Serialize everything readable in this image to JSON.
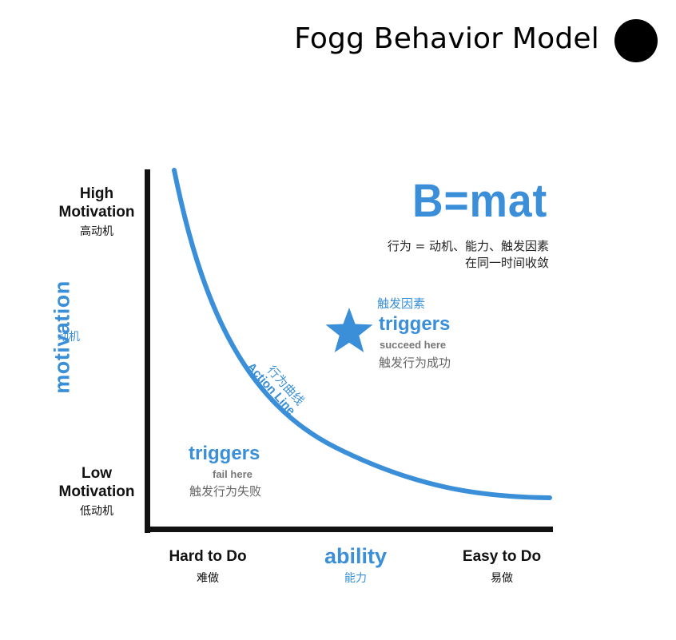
{
  "title": "Fogg Behavior Model",
  "y_axis": {
    "high_en_line1": "High",
    "high_en_line2": "Motivation",
    "high_cn": "高动机",
    "label_cn": "动机",
    "label_en": "motivation",
    "low_en_line1": "Low",
    "low_en_line2": "Motivation",
    "low_cn": "低动机"
  },
  "x_axis": {
    "hard_en": "Hard to Do",
    "hard_cn": "难做",
    "label_en": "ability",
    "label_cn": "能力",
    "easy_en": "Easy to Do",
    "easy_cn": "易做"
  },
  "formula": {
    "text": "B=mat",
    "desc_line1": "行为 = 动机、能力、触发因素",
    "desc_line2": "在同一时间收敛"
  },
  "success_zone": {
    "cn_title": "触发因素",
    "title": "triggers",
    "sub": "succeed here",
    "cn_sub": "触发行为成功"
  },
  "fail_zone": {
    "title": "triggers",
    "sub": "fail here",
    "cn_sub": "触发行为失败"
  },
  "action_line": {
    "cn": "行为曲线",
    "en": "Action Line"
  },
  "colors": {
    "accent": "#3a8fd8",
    "axis": "#111111",
    "text": "#111111",
    "muted": "#777777"
  },
  "icons": {
    "star": "star-icon",
    "title_dot": "filled-circle-icon"
  }
}
